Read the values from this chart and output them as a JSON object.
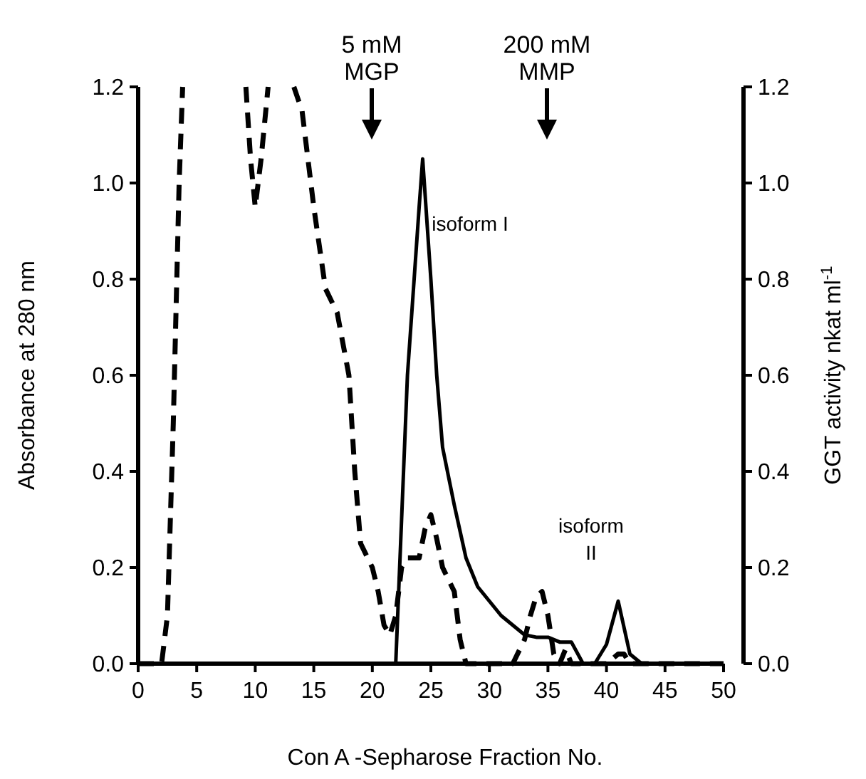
{
  "chart_data": {
    "type": "line",
    "xlabel": "Con A -Sepharose Fraction No.",
    "ylabel": "Absorbance at 280 nm",
    "y2label": "GGT activity nkat ml$^{-1}$",
    "xlim": [
      0,
      50
    ],
    "xticks": [
      0,
      5,
      10,
      15,
      20,
      25,
      30,
      35,
      40,
      45,
      50
    ],
    "ylim": [
      0,
      1.2
    ],
    "yticks": [
      {
        "value": 0,
        "label": "0.0"
      },
      {
        "value": 0.2,
        "label": "0.2"
      },
      {
        "value": 0.4,
        "label": "0.4"
      },
      {
        "value": 0.6,
        "label": "0.6"
      },
      {
        "value": 0.8,
        "label": "0.8"
      },
      {
        "value": 1,
        "label": "1.0"
      },
      {
        "value": 1.2,
        "label": "1.2"
      }
    ],
    "y2lim": [
      0,
      1.2
    ],
    "y2ticks": [
      {
        "value": 0,
        "label": "0.0"
      },
      {
        "value": 0.2,
        "label": "0.2"
      },
      {
        "value": 0.4,
        "label": "0.4"
      },
      {
        "value": 0.6,
        "label": "0.6"
      },
      {
        "value": 0.8,
        "label": "0.8"
      },
      {
        "value": 1,
        "label": "1.0"
      },
      {
        "value": 1.2,
        "label": "1.2"
      }
    ],
    "grid": false,
    "marker": "none",
    "series": [
      {
        "color": "#000000",
        "line_style": "dashed",
        "x": [
          0,
          2,
          2.5,
          3,
          3.5,
          3.8,
          6,
          9.2,
          9.6,
          10,
          10.5,
          11.1,
          12,
          13.3,
          14,
          15,
          16,
          17,
          18,
          18.5,
          19,
          20,
          20.5,
          21,
          21.5,
          22,
          22.5,
          23,
          23.5,
          24,
          24.5,
          25,
          25.5,
          26,
          27,
          27.5,
          28,
          32,
          33,
          33.5,
          34,
          34.5,
          35,
          35.5,
          36,
          36.5,
          37,
          40,
          41,
          41.5,
          42,
          50
        ],
        "values": [
          0,
          0,
          0.1,
          0.5,
          1.0,
          1.2,
          null,
          1.2,
          1.05,
          0.95,
          1.05,
          1.2,
          null,
          1.2,
          1.15,
          0.95,
          0.78,
          0.73,
          0.6,
          0.4,
          0.25,
          0.2,
          0.15,
          0.08,
          0.06,
          0.1,
          0.2,
          0.22,
          0.22,
          0.22,
          0.28,
          0.31,
          0.26,
          0.2,
          0.15,
          0.05,
          0,
          0,
          0.05,
          0.1,
          0.14,
          0.15,
          0.1,
          0.02,
          0,
          0.03,
          0,
          0,
          0.02,
          0.02,
          0,
          0
        ]
      },
      {
        "color": "#000000",
        "line_style": "solid",
        "axis": "y2",
        "x": [
          0,
          22,
          22.5,
          23,
          24,
          24.3,
          25,
          25.5,
          26,
          27,
          28,
          29,
          30,
          31,
          32,
          33,
          34,
          35,
          36,
          37,
          38,
          39,
          40,
          41,
          42,
          43,
          50
        ],
        "values": [
          0,
          0,
          0.3,
          0.6,
          0.95,
          1.05,
          0.8,
          0.6,
          0.45,
          0.33,
          0.22,
          0.16,
          0.13,
          0.1,
          0.08,
          0.06,
          0.055,
          0.055,
          0.045,
          0.045,
          0,
          0,
          0.04,
          0.13,
          0.02,
          0,
          0
        ]
      }
    ],
    "annotations": [
      "5 mM\nMGP",
      "200 mM\nMMP",
      "isoform I",
      "isoform\nII"
    ]
  }
}
